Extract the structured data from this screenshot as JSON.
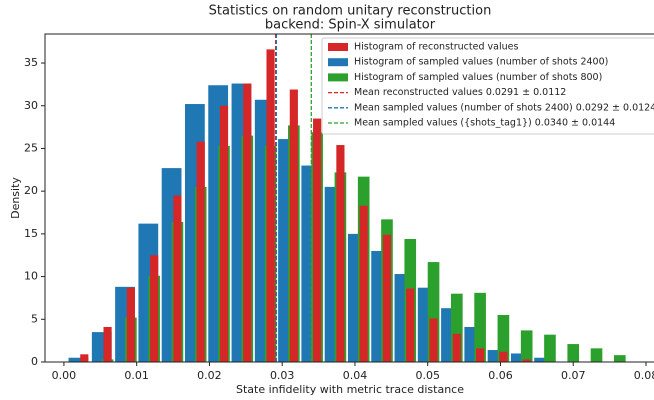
{
  "chart_data": {
    "type": "histogram",
    "title": "Statistics on random unitary reconstruction",
    "subtitle": "backend: Spin-X simulator",
    "x_label": "State infidelity with metric trace distance",
    "y_label": "Density",
    "xlim": [
      -0.0026,
      0.0811
    ],
    "ylim": [
      0,
      38.4
    ],
    "xticks": [
      {
        "value": 0,
        "label": "0.00"
      },
      {
        "value": 0.01,
        "label": "0.01"
      },
      {
        "value": 0.02,
        "label": "0.02"
      },
      {
        "value": 0.03,
        "label": "0.03"
      },
      {
        "value": 0.04,
        "label": "0.04"
      },
      {
        "value": 0.05,
        "label": "0.05"
      },
      {
        "value": 0.06,
        "label": "0.06"
      },
      {
        "value": 0.07,
        "label": "0.07"
      },
      {
        "value": 0.08,
        "label": "0.08"
      }
    ],
    "yticks": [
      0,
      5,
      10,
      15,
      20,
      25,
      30,
      35
    ],
    "legend": "upper right",
    "series": [
      {
        "name": "Histogram of sampled values (number of shots 2400)",
        "color": "#1f77b4",
        "bins": [
          0.0004,
          0.0036,
          0.0068,
          0.01,
          0.0132,
          0.0164,
          0.0196,
          0.0228,
          0.026,
          0.0292,
          0.0324,
          0.0356,
          0.0388,
          0.042,
          0.0452,
          0.0484,
          0.0516,
          0.0548,
          0.058,
          0.0612,
          0.0644,
          0.0676
        ],
        "values": [
          0.5,
          3.5,
          8.8,
          16.2,
          22.7,
          30.2,
          32.4,
          32.6,
          30.7,
          26.1,
          23.0,
          20.5,
          15.0,
          13.0,
          10.3,
          8.7,
          6.3,
          4.1,
          1.4,
          1.0,
          0.5
        ]
      },
      {
        "name": "Histogram of sampled values (number of shots 800)",
        "color": "#2ca02c",
        "bins": [
          0.0044,
          0.0076,
          0.0108,
          0.014,
          0.0172,
          0.0204,
          0.0236,
          0.0268,
          0.03,
          0.0332,
          0.0364,
          0.0396,
          0.0428,
          0.046,
          0.0492,
          0.0524,
          0.0556,
          0.0588,
          0.062,
          0.0652,
          0.0684,
          0.0716,
          0.0748,
          0.078
        ],
        "values": [
          0.3,
          5.2,
          10.1,
          16.4,
          20.5,
          25.3,
          26.5,
          25.3,
          27.7,
          26.9,
          22.2,
          21.7,
          16.7,
          14.4,
          11.7,
          8.0,
          8.1,
          5.5,
          3.7,
          3.2,
          2.1,
          1.6,
          0.8
        ]
      },
      {
        "name": "Histogram of reconstructed values",
        "color": "#d62728",
        "bins": [
          0.0012,
          0.0044,
          0.0076,
          0.0108,
          0.014,
          0.0172,
          0.0204,
          0.0236,
          0.0268,
          0.03,
          0.0332,
          0.0364,
          0.0396,
          0.0428,
          0.046,
          0.0492,
          0.0524,
          0.0556,
          0.0588,
          0.062,
          0.0652
        ],
        "values": [
          0.9,
          4.1,
          8.7,
          12.5,
          19.5,
          25.8,
          30.0,
          32.6,
          36.6,
          31.9,
          28.5,
          25.4,
          18.3,
          14.9,
          8.6,
          5.1,
          3.3,
          1.6,
          1.2,
          0.3
        ]
      }
    ],
    "legend_order": [
      2,
      0,
      1
    ],
    "vlines": [
      {
        "x": 0.0291,
        "color": "#d62728",
        "label": "Mean reconstructed values 0.0291 ± 0.0112"
      },
      {
        "x": 0.0292,
        "color": "#1f77b4",
        "label": "Mean sampled values (number of shots 2400) 0.0292 ± 0.0124"
      },
      {
        "x": 0.034,
        "color": "#2ca02c",
        "label": "Mean sampled values ({shots_tag1}) 0.0340 ± 0.0144"
      }
    ]
  }
}
